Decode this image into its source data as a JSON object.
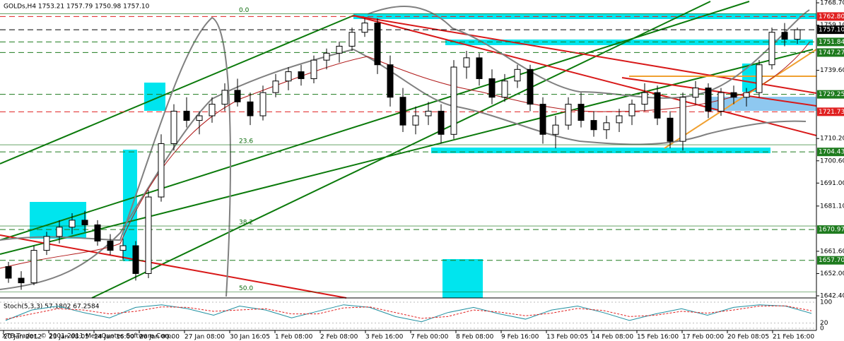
{
  "header": {
    "symbol_line": "GOLDs,H4  1753.21 1757.79 1750.98 1757.10",
    "copyright": "XTB-Trader, © 2001-2011 MetaQuotes Software Corp.",
    "stoch_label": "Stoch(5,3,3) 57.1802 67.2584"
  },
  "chart_data": {
    "type": "candlestick",
    "open": [
      1655,
      1650,
      1648,
      1662,
      1668,
      1672,
      1675,
      1673,
      1666,
      1662,
      1664,
      1652,
      1685,
      1708,
      1722,
      1718,
      1720,
      1725,
      1731,
      1726,
      1720,
      1730,
      1735,
      1739,
      1736,
      1744,
      1747,
      1750,
      1756,
      1760,
      1742,
      1728,
      1716,
      1720,
      1722,
      1712,
      1741,
      1745,
      1736,
      1728,
      1735,
      1740,
      1725,
      1712,
      1716,
      1725,
      1718,
      1714,
      1717,
      1720,
      1725,
      1730,
      1719,
      1709,
      1728,
      1732,
      1722,
      1730,
      1728,
      1730,
      1742,
      1756,
      1753
    ],
    "high": [
      1657,
      1653,
      1664,
      1670,
      1675,
      1678,
      1679,
      1675,
      1669,
      1667,
      1666,
      1688,
      1712,
      1725,
      1728,
      1722,
      1728,
      1734,
      1736,
      1730,
      1733,
      1738,
      1741,
      1742,
      1746,
      1749,
      1752,
      1758,
      1762,
      1762,
      1746,
      1732,
      1724,
      1726,
      1725,
      1744,
      1748,
      1747,
      1740,
      1738,
      1742,
      1742,
      1728,
      1720,
      1728,
      1730,
      1722,
      1720,
      1723,
      1727,
      1734,
      1733,
      1722,
      1730,
      1735,
      1734,
      1732,
      1733,
      1732,
      1744,
      1758,
      1760,
      1758
    ],
    "low": [
      1648,
      1645,
      1647,
      1660,
      1665,
      1669,
      1670,
      1664,
      1660,
      1658,
      1649,
      1650,
      1683,
      1705,
      1715,
      1712,
      1717,
      1722,
      1724,
      1716,
      1718,
      1728,
      1731,
      1733,
      1734,
      1740,
      1743,
      1748,
      1754,
      1738,
      1724,
      1713,
      1712,
      1716,
      1708,
      1710,
      1736,
      1733,
      1725,
      1726,
      1732,
      1722,
      1708,
      1706,
      1714,
      1715,
      1711,
      1710,
      1713,
      1716,
      1722,
      1716,
      1706,
      1705,
      1725,
      1719,
      1720,
      1725,
      1724,
      1728,
      1740,
      1750,
      1751
    ],
    "close": [
      1650,
      1648,
      1662,
      1668,
      1672,
      1675,
      1673,
      1666,
      1662,
      1664,
      1652,
      1685,
      1708,
      1722,
      1718,
      1720,
      1725,
      1731,
      1726,
      1720,
      1730,
      1735,
      1739,
      1736,
      1744,
      1747,
      1750,
      1756,
      1760,
      1742,
      1728,
      1716,
      1720,
      1722,
      1712,
      1741,
      1745,
      1736,
      1728,
      1735,
      1740,
      1725,
      1712,
      1716,
      1725,
      1718,
      1714,
      1717,
      1720,
      1725,
      1730,
      1719,
      1709,
      1728,
      1732,
      1722,
      1730,
      1728,
      1730,
      1742,
      1756,
      1753,
      1757.1
    ],
    "ylim": [
      1642.4,
      1768.7
    ],
    "yticks": [
      {
        "value": 1768.7,
        "label": "1768.70"
      },
      {
        "value": 1759.1,
        "label": "1759.10"
      },
      {
        "value": 1739.6,
        "label": "1739.60"
      },
      {
        "value": 1710.2,
        "label": "1710.20"
      },
      {
        "value": 1700.6,
        "label": "1700.60"
      },
      {
        "value": 1691,
        "label": "1691.00"
      },
      {
        "value": 1681.1,
        "label": "1681.10"
      },
      {
        "value": 1661.6,
        "label": "1661.60"
      },
      {
        "value": 1652,
        "label": "1652.00"
      },
      {
        "value": 1642.4,
        "label": "1642.40"
      }
    ],
    "levels": [
      {
        "value": 1762.8,
        "label": "1762.80",
        "color": "#e02020"
      },
      {
        "value": 1757.1,
        "label": "1757.10",
        "color": "#000000"
      },
      {
        "value": 1751.84,
        "label": "1751.84",
        "color": "#1e7b1e"
      },
      {
        "value": 1747.27,
        "label": "1747.27",
        "color": "#1e7b1e"
      },
      {
        "value": 1729.25,
        "label": "1729.25",
        "color": "#1e7b1e"
      },
      {
        "value": 1721.73,
        "label": "1721.73",
        "color": "#e02020"
      },
      {
        "value": 1704.43,
        "label": "1704.43",
        "color": "#1e7b1e"
      },
      {
        "value": 1670.97,
        "label": "1670.97",
        "color": "#1e7b1e"
      },
      {
        "value": 1657.7,
        "label": "1657.70",
        "color": "#1e7b1e"
      }
    ],
    "fib_levels": [
      {
        "value": 1764.0,
        "label": "0.0"
      },
      {
        "value": 1707.5,
        "label": "23.6"
      },
      {
        "value": 1672.5,
        "label": "38.2"
      },
      {
        "value": 1644.0,
        "label": "50.0"
      }
    ],
    "time_labels": [
      "20 Jan 2012",
      "23 Jan 08:05",
      "24 Jan 16:00",
      "26 Jan 00:00",
      "27 Jan 08:00",
      "30 Jan 16:05",
      "1 Feb 08:00",
      "2 Feb 08:00",
      "3 Feb 16:00",
      "7 Feb 00:00",
      "8 Feb 08:00",
      "9 Feb 16:00",
      "13 Feb 00:05",
      "14 Feb 08:00",
      "15 Feb 16:00",
      "17 Feb 00:00",
      "20 Feb 08:05",
      "21 Feb 16:00"
    ],
    "stoch": {
      "ylim": [
        0,
        100
      ],
      "yticks": [
        100,
        20,
        0
      ],
      "series": [
        {
          "name": "main",
          "color": "#1f8fa0",
          "values": [
            30,
            70,
            85,
            60,
            40,
            80,
            90,
            75,
            50,
            85,
            70,
            40,
            65,
            90,
            80,
            45,
            25,
            60,
            80,
            55,
            35,
            70,
            85,
            60,
            30,
            55,
            75,
            50,
            80,
            90,
            85,
            57
          ]
        },
        {
          "name": "signal",
          "color": "#e02020",
          "values": [
            35,
            55,
            75,
            70,
            55,
            65,
            82,
            80,
            65,
            70,
            75,
            55,
            55,
            78,
            82,
            60,
            38,
            45,
            70,
            62,
            48,
            58,
            76,
            68,
            45,
            50,
            65,
            58,
            70,
            85,
            86,
            67
          ]
        }
      ]
    }
  }
}
